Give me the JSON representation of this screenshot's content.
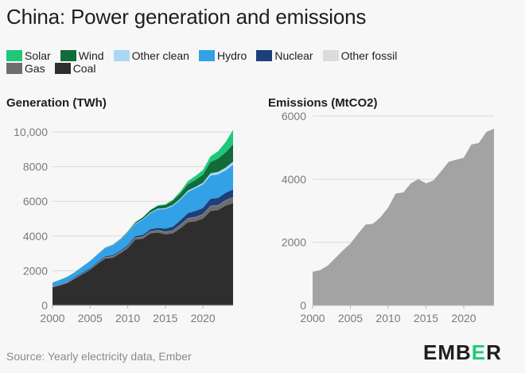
{
  "title": "China: Power generation and emissions",
  "legend": [
    {
      "label": "Solar",
      "color": "#1ec87a"
    },
    {
      "label": "Wind",
      "color": "#126c3a"
    },
    {
      "label": "Other clean",
      "color": "#a9d8f5"
    },
    {
      "label": "Hydro",
      "color": "#33a1e5"
    },
    {
      "label": "Nuclear",
      "color": "#1d3f7a"
    },
    {
      "label": "Other fossil",
      "color": "#dcdcdc"
    },
    {
      "label": "Gas",
      "color": "#6d6d6d"
    },
    {
      "label": "Coal",
      "color": "#2e2e2e"
    }
  ],
  "generation_title": "Generation (TWh)",
  "emissions_title": "Emissions (MtCO2)",
  "source": "Source: Yearly electricity data, Ember",
  "logo": {
    "part1": "EMB",
    "part2": "E",
    "part3": "R"
  },
  "chart_data": [
    {
      "type": "area",
      "title": "Generation (TWh)",
      "stacked": true,
      "x": [
        2000,
        2001,
        2002,
        2003,
        2004,
        2005,
        2006,
        2007,
        2008,
        2009,
        2010,
        2011,
        2012,
        2013,
        2014,
        2015,
        2016,
        2017,
        2018,
        2019,
        2020,
        2021,
        2022,
        2023,
        2024
      ],
      "xticks": [
        2000,
        2005,
        2010,
        2015,
        2020
      ],
      "ylim": [
        0,
        10000
      ],
      "yticks": [
        0,
        2000,
        4000,
        6000,
        8000,
        10000
      ],
      "ytick_labels": [
        "0",
        "2000",
        "4000",
        "6000",
        "8000",
        "10,000"
      ],
      "series": [
        {
          "name": "Coal",
          "color": "#2e2e2e",
          "values": [
            1050,
            1150,
            1300,
            1550,
            1800,
            2050,
            2400,
            2700,
            2750,
            3000,
            3300,
            3800,
            3850,
            4150,
            4200,
            4100,
            4150,
            4450,
            4800,
            4850,
            5000,
            5450,
            5500,
            5750,
            5900
          ]
        },
        {
          "name": "Gas",
          "color": "#6d6d6d",
          "values": [
            20,
            25,
            30,
            35,
            40,
            45,
            50,
            65,
            70,
            75,
            80,
            95,
            110,
            120,
            130,
            145,
            170,
            200,
            215,
            235,
            250,
            280,
            270,
            300,
            330
          ]
        },
        {
          "name": "Other fossil",
          "color": "#dcdcdc",
          "values": [
            10,
            10,
            10,
            10,
            10,
            10,
            10,
            10,
            10,
            10,
            10,
            10,
            10,
            10,
            10,
            10,
            10,
            10,
            10,
            10,
            10,
            10,
            10,
            10,
            10
          ]
        },
        {
          "name": "Nuclear",
          "color": "#1d3f7a",
          "values": [
            17,
            18,
            25,
            43,
            50,
            53,
            55,
            62,
            68,
            70,
            74,
            86,
            97,
            112,
            133,
            171,
            213,
            248,
            295,
            349,
            366,
            408,
            418,
            433,
            450
          ]
        },
        {
          "name": "Hydro",
          "color": "#33a1e5",
          "values": [
            222,
            277,
            288,
            284,
            354,
            397,
            436,
            485,
            585,
            616,
            722,
            698,
            872,
            920,
            1064,
            1127,
            1193,
            1194,
            1232,
            1302,
            1355,
            1340,
            1352,
            1286,
            1420
          ]
        },
        {
          "name": "Other clean",
          "color": "#a9d8f5",
          "values": [
            5,
            5,
            5,
            5,
            5,
            5,
            10,
            10,
            15,
            20,
            25,
            35,
            40,
            45,
            50,
            55,
            60,
            65,
            75,
            85,
            95,
            130,
            150,
            160,
            180
          ]
        },
        {
          "name": "Wind",
          "color": "#126c3a",
          "values": [
            1,
            1,
            2,
            2,
            3,
            3,
            4,
            6,
            13,
            27,
            45,
            70,
            96,
            138,
            158,
            185,
            241,
            295,
            366,
            406,
            467,
            656,
            762,
            886,
            1000
          ]
        },
        {
          "name": "Solar",
          "color": "#1ec87a",
          "values": [
            0,
            0,
            0,
            0,
            0,
            0,
            0,
            0,
            0,
            0,
            1,
            3,
            5,
            8,
            24,
            39,
            66,
            118,
            177,
            225,
            261,
            327,
            428,
            584,
            830
          ]
        }
      ]
    },
    {
      "type": "area",
      "title": "Emissions (MtCO2)",
      "x": [
        2000,
        2001,
        2002,
        2003,
        2004,
        2005,
        2006,
        2007,
        2008,
        2009,
        2010,
        2011,
        2012,
        2013,
        2014,
        2015,
        2016,
        2017,
        2018,
        2019,
        2020,
        2021,
        2022,
        2023,
        2024
      ],
      "xticks": [
        2000,
        2005,
        2010,
        2015,
        2020
      ],
      "ylim": [
        0,
        6000
      ],
      "yticks": [
        0,
        2000,
        4000,
        6000
      ],
      "ytick_labels": [
        "0",
        "2000",
        "4000",
        "6000"
      ],
      "series": [
        {
          "name": "Emissions",
          "color": "#a3a3a3",
          "values": [
            1070,
            1120,
            1260,
            1500,
            1740,
            1960,
            2270,
            2560,
            2590,
            2800,
            3100,
            3550,
            3580,
            3870,
            4000,
            3870,
            3960,
            4250,
            4550,
            4620,
            4680,
            5100,
            5150,
            5500,
            5600
          ]
        }
      ]
    }
  ]
}
